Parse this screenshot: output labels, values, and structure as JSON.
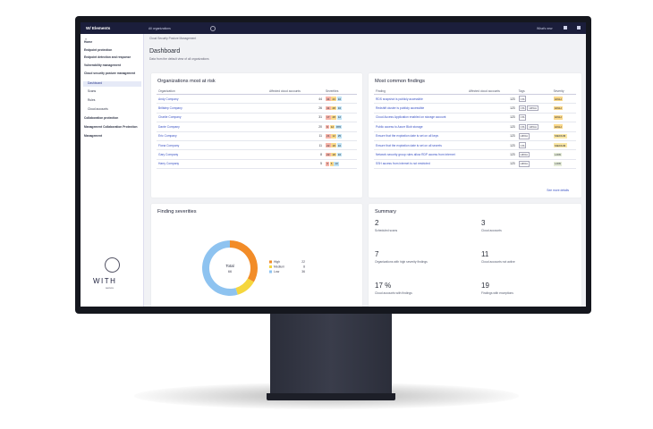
{
  "topbar": {
    "brand": "W/ Elements",
    "organization": "All organizations",
    "whats_new": "What's new"
  },
  "sidebar": {
    "items": [
      "Home",
      "Endpoint protection",
      "Endpoint detection and response",
      "Vulnerability management",
      "Cloud security posture management",
      "Dashboard",
      "Scans",
      "Rules",
      "Cloud accounts",
      "Collaboration protection",
      "Management Collaboration Protection",
      "Management"
    ],
    "logo": {
      "top": "WITH",
      "bottom": "secure"
    }
  },
  "header": {
    "breadcrumb": "Cloud Security Posture Management",
    "title": "Dashboard",
    "subtitle": "Data from the default view of all organizations"
  },
  "organizations": {
    "title": "Organizations most at risk",
    "columns": [
      "Organization",
      "Affected cloud accounts",
      "Severities"
    ],
    "rows": [
      [
        "Andy Company",
        "44",
        [
          "34",
          "23",
          "10"
        ]
      ],
      [
        "Brillstep Company",
        "26",
        [
          "41",
          "28",
          "10"
        ]
      ],
      [
        "Charlie Company",
        "31",
        [
          "17",
          "28",
          "12"
        ]
      ],
      [
        "Dante Company",
        "20",
        [
          "9",
          "12",
          "876"
        ]
      ],
      [
        "Eric Company",
        "11",
        [
          "21",
          "12",
          "25"
        ]
      ],
      [
        "Fiona Company",
        "11",
        [
          "22",
          "18",
          "10"
        ]
      ],
      [
        "Gary Company",
        "8",
        [
          "22",
          "18",
          "16"
        ]
      ],
      [
        "Harry Company",
        "5",
        [
          "3",
          "6",
          "10"
        ]
      ]
    ]
  },
  "findings": {
    "title": "Most common findings",
    "columns": [
      "Finding",
      "Affected cloud accounts",
      "Tags",
      "Severity"
    ],
    "rows": [
      [
        "RDS snapshot is publicly accessible",
        "123",
        [
          "CIS"
        ],
        "HIGH"
      ],
      [
        "Redshift cluster is publicly accessible",
        "123",
        [
          "CIS",
          "HIPAA"
        ],
        "HIGH"
      ],
      [
        "Cloud Access Application enabled on storage account",
        "123",
        [
          "CIS"
        ],
        "HIGH"
      ],
      [
        "Public access to Azure Blob storage",
        "123",
        [
          "CIS",
          "HIPAA"
        ],
        "HIGH"
      ],
      [
        "Ensure that the expiration date is set on all keys",
        "123",
        [
          "HIPAA"
        ],
        "MEDIUM"
      ],
      [
        "Ensure that the expiration date is set on all secrets",
        "123",
        [
          "CIS"
        ],
        "MEDIUM"
      ],
      [
        "Network security group rules allow RDP access from internet",
        "123",
        [
          "HIPAA"
        ],
        "LOW"
      ],
      [
        "SSH access from internet is not restricted",
        "123",
        [
          "HIPAA"
        ],
        "LOW"
      ]
    ],
    "more": "See more details"
  },
  "severities": {
    "title": "Finding severities",
    "total_label": "Total",
    "total": 66,
    "segments": [
      {
        "name": "High",
        "value": 22,
        "color": "#f28c28"
      },
      {
        "name": "Medium",
        "value": 8,
        "color": "#f5d63d"
      },
      {
        "name": "Low",
        "value": 36,
        "color": "#8ec3f0"
      }
    ]
  },
  "summary": {
    "title": "Summary",
    "items": [
      {
        "value": "2",
        "label": "Scheduled scans"
      },
      {
        "value": "3",
        "label": "Cloud accounts"
      },
      {
        "value": "7",
        "label": "Organizations with high severity findings"
      },
      {
        "value": "11",
        "label": "Cloud accounts not active"
      },
      {
        "value": "17 %",
        "label": "Cloud accounts with findings"
      },
      {
        "value": "19",
        "label": "Findings with exceptions"
      }
    ]
  }
}
